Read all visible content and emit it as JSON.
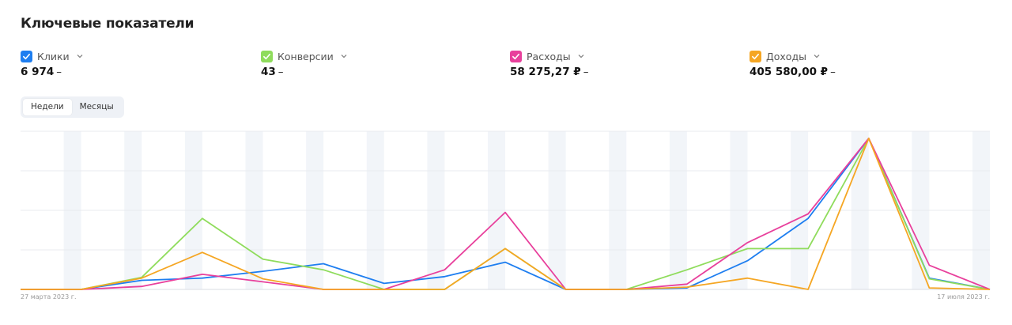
{
  "title": "Ключевые показатели",
  "metrics": [
    {
      "label": "Клики",
      "value": "6 974",
      "trend": "–",
      "color": "#1e7ef0",
      "icon": "check-icon"
    },
    {
      "label": "Конверсии",
      "value": "43",
      "trend": "–",
      "color": "#8fdc5c",
      "icon": "check-icon"
    },
    {
      "label": "Расходы",
      "value": "58 275,27 ₽",
      "trend": "–",
      "color": "#e8409c",
      "icon": "check-icon"
    },
    {
      "label": "Доходы",
      "value": "405 580,00 ₽",
      "trend": "–",
      "color": "#f5a623",
      "icon": "check-icon"
    }
  ],
  "period_toggle": {
    "weeks": "Недели",
    "months": "Месяцы",
    "selected": "Недели"
  },
  "chart_data": {
    "type": "line",
    "x_start_label": "27 марта 2023 г.",
    "x_end_label": "17 июля 2023 г.",
    "grid": true,
    "ylim": [
      0,
      1
    ],
    "points_count": 17,
    "series": [
      {
        "name": "Клики",
        "color": "#1e7ef0",
        "values": [
          0,
          0,
          0.06,
          0.075,
          0.12,
          0.17,
          0.04,
          0.085,
          0.18,
          0,
          0,
          0.01,
          0.19,
          0.47,
          1.0,
          0.075,
          0
        ]
      },
      {
        "name": "Конверсии",
        "color": "#8fdc5c",
        "values": [
          0,
          0,
          0.08,
          0.47,
          0.2,
          0.13,
          0,
          0,
          0.27,
          0,
          0,
          0.13,
          0.27,
          0.27,
          1.0,
          0.07,
          0
        ]
      },
      {
        "name": "Расходы",
        "color": "#e8409c",
        "values": [
          0,
          0,
          0.02,
          0.1,
          0.05,
          0,
          0,
          0.13,
          0.51,
          0,
          0,
          0.035,
          0.31,
          0.5,
          1.0,
          0.16,
          0
        ]
      },
      {
        "name": "Доходы",
        "color": "#f5a623",
        "values": [
          0,
          0,
          0.075,
          0.245,
          0.07,
          0,
          0,
          0,
          0.27,
          0,
          0,
          0.015,
          0.075,
          0,
          1.0,
          0.01,
          0
        ]
      }
    ]
  }
}
